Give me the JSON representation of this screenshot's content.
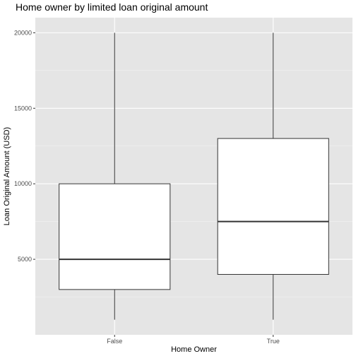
{
  "chart_data": {
    "type": "box",
    "title": "Home owner by limited loan original amount",
    "xlabel": "Home Owner",
    "ylabel": "Loan Original Amount (USD)",
    "categories": [
      "False",
      "True"
    ],
    "yticks": [
      5000,
      10000,
      15000,
      20000
    ],
    "ylim": [
      0,
      21000
    ],
    "grid": true,
    "boxes": [
      {
        "category": "False",
        "min": 1000,
        "q1": 3000,
        "median": 5000,
        "q3": 10000,
        "max": 20000
      },
      {
        "category": "True",
        "min": 1000,
        "q1": 4000,
        "median": 7500,
        "q3": 13000,
        "max": 20000
      }
    ],
    "colors": {
      "panel_background": "#e5e5e5",
      "grid_major": "#ffffff",
      "grid_minor": "#f2f2f2",
      "box_fill": "#ffffff",
      "box_stroke": "#333333"
    }
  }
}
